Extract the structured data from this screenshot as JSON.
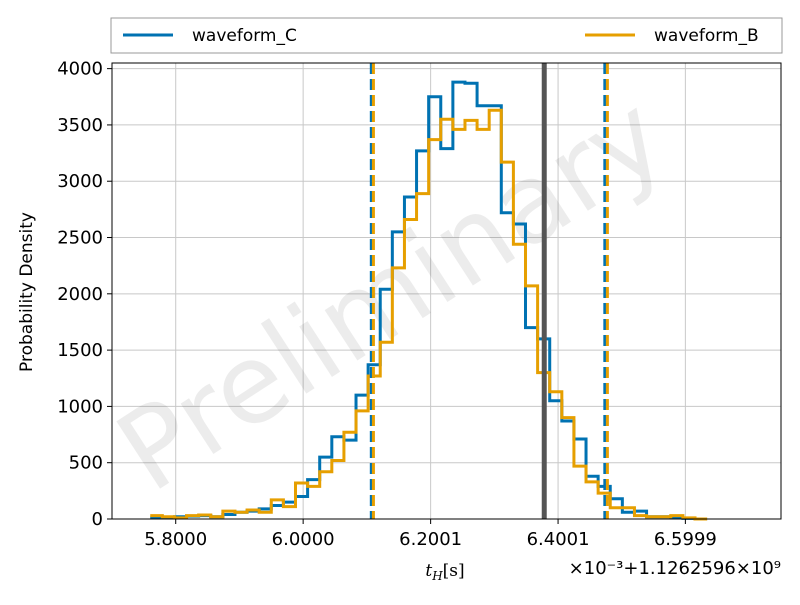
{
  "chart_data": {
    "type": "histogram",
    "ylabel": "Probability Density",
    "xlabel": "t_H[s]",
    "xlabel_main": "t",
    "xlabel_sub": "H",
    "xlabel_unit": "[s]",
    "offset_text": "×10⁻³+1.1262596×10⁹",
    "watermark": "Preliminary",
    "xlim": [
      5.7,
      6.75
    ],
    "ylim": [
      0,
      4050
    ],
    "xticks": [
      {
        "value": 5.8,
        "label": "5.8000"
      },
      {
        "value": 6.0,
        "label": "6.0000"
      },
      {
        "value": 6.2001,
        "label": "6.2001"
      },
      {
        "value": 6.4001,
        "label": "6.4001"
      },
      {
        "value": 6.5999,
        "label": "6.5999"
      }
    ],
    "yticks": [
      0,
      500,
      1000,
      1500,
      2000,
      2500,
      3000,
      3500,
      4000
    ],
    "grid": true,
    "legend_placement": "top (above plot)",
    "median_line": {
      "x": 6.3784,
      "color": "#555555"
    },
    "series": [
      {
        "name": "waveform_C",
        "color": "#0072B2",
        "credible_interval": [
          6.107,
          6.4735
        ],
        "bin_start": 5.76,
        "bin_width": 0.019,
        "values": [
          10,
          15,
          20,
          25,
          30,
          20,
          40,
          60,
          70,
          90,
          120,
          150,
          200,
          350,
          550,
          730,
          700,
          1100,
          1370,
          2040,
          2550,
          2860,
          3270,
          3750,
          3290,
          3880,
          3870,
          3670,
          3670,
          2720,
          2620,
          1700,
          1600,
          1050,
          870,
          710,
          380,
          290,
          180,
          60,
          70,
          20,
          20,
          10,
          5,
          0
        ]
      },
      {
        "name": "waveform_B",
        "color": "#E69F00",
        "credible_interval": [
          6.1103,
          6.4775
        ],
        "bin_start": 5.76,
        "bin_width": 0.019,
        "values": [
          30,
          20,
          10,
          30,
          35,
          20,
          70,
          60,
          80,
          60,
          170,
          110,
          320,
          290,
          420,
          520,
          770,
          960,
          1270,
          1570,
          2230,
          2660,
          2890,
          3370,
          3550,
          3460,
          3540,
          3460,
          3630,
          3170,
          2440,
          2070,
          1300,
          1130,
          900,
          470,
          330,
          230,
          100,
          100,
          30,
          20,
          20,
          30,
          10,
          0
        ]
      }
    ]
  }
}
